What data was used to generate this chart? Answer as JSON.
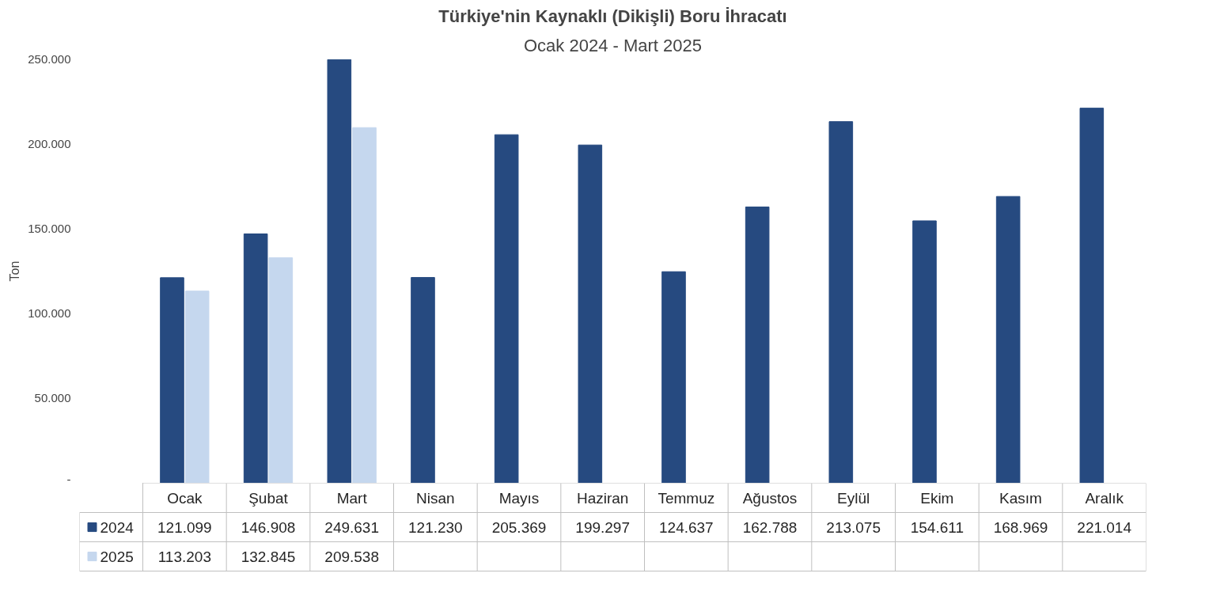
{
  "chart_data": {
    "type": "bar",
    "title": "Türkiye'nin Kaynaklı (Dikişli) Boru İhracatı",
    "subtitle": "Ocak 2024 - Mart 2025",
    "ylabel": "Ton",
    "categories": [
      "Ocak",
      "Şubat",
      "Mart",
      "Nisan",
      "Mayıs",
      "Haziran",
      "Temmuz",
      "Ağustos",
      "Eylül",
      "Ekim",
      "Kasım",
      "Aralık"
    ],
    "series": [
      {
        "name": "2024",
        "color": "#264a80",
        "values": [
          121099,
          146908,
          249631,
          121230,
          205369,
          199297,
          124637,
          162788,
          213075,
          154611,
          168969,
          221014
        ],
        "value_labels": [
          "121.099",
          "146.908",
          "249.631",
          "121.230",
          "205.369",
          "199.297",
          "124.637",
          "162.788",
          "213.075",
          "154.611",
          "168.969",
          "221.014"
        ]
      },
      {
        "name": "2025",
        "color": "#c5d7ee",
        "values": [
          113203,
          132845,
          209538,
          null,
          null,
          null,
          null,
          null,
          null,
          null,
          null,
          null
        ],
        "value_labels": [
          "113.203",
          "132.845",
          "209.538",
          null,
          null,
          null,
          null,
          null,
          null,
          null,
          null,
          null
        ]
      }
    ],
    "ylim": [
      0,
      250000
    ],
    "yticks": [
      {
        "value": 0,
        "label": "-"
      },
      {
        "value": 50000,
        "label": "50.000"
      },
      {
        "value": 100000,
        "label": "100.000"
      },
      {
        "value": 150000,
        "label": "150.000"
      },
      {
        "value": 200000,
        "label": "200.000"
      },
      {
        "value": 250000,
        "label": "250.000"
      }
    ],
    "grid": false,
    "legend": "bottom"
  }
}
